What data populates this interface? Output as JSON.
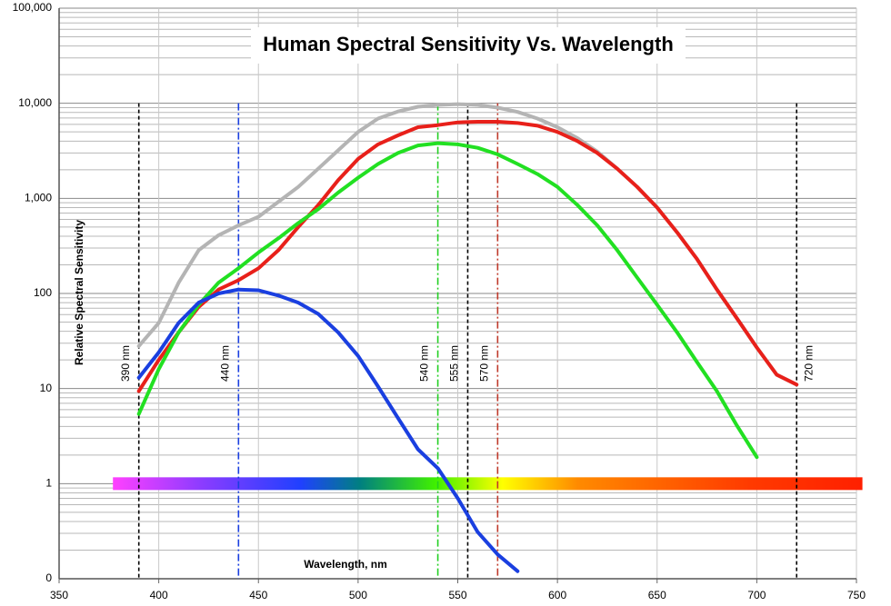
{
  "chart_data": {
    "type": "line",
    "title": "Human Spectral Sensitivity Vs. Wavelength",
    "x_label": "Wavelength, nm",
    "y_label": "Relative Spectral Sensitivity",
    "log_y": true,
    "grid": true,
    "xlim": [
      350,
      750
    ],
    "xticks": [
      350,
      400,
      450,
      500,
      550,
      600,
      650,
      700,
      750
    ],
    "ylim": [
      0.1,
      100000
    ],
    "yticks": [
      {
        "value": 0.1,
        "label": "0"
      },
      1,
      10,
      100,
      {
        "value": 1000,
        "label": "1,000"
      },
      {
        "value": 10000,
        "label": "10,000"
      },
      {
        "value": 100000,
        "label": "100,000"
      }
    ],
    "x": [
      390,
      400,
      410,
      420,
      430,
      440,
      450,
      460,
      470,
      480,
      490,
      500,
      510,
      520,
      530,
      540,
      550,
      560,
      570,
      580,
      590,
      600,
      610,
      620,
      630,
      640,
      650,
      660,
      670,
      680,
      690,
      700,
      710,
      720
    ],
    "series": [
      {
        "color": "#1a3fe0",
        "values": [
          13,
          24,
          49,
          80,
          100,
          110,
          108,
          95,
          80,
          61,
          39,
          22,
          10.5,
          4.9,
          2.3,
          1.45,
          0.7,
          0.31,
          0.18,
          0.12,
          null,
          null,
          null,
          null,
          null,
          null,
          null,
          null,
          null,
          null,
          null,
          null,
          null,
          null
        ]
      },
      {
        "color": "#e8201a",
        "values": [
          9.4,
          20,
          39,
          72,
          110,
          138,
          184,
          285,
          500,
          850,
          1550,
          2600,
          3700,
          4600,
          5600,
          5900,
          6300,
          6400,
          6400,
          6200,
          5800,
          5000,
          4000,
          3000,
          2050,
          1320,
          800,
          440,
          230,
          110,
          55,
          27,
          14,
          11
        ]
      },
      {
        "color": "#22e022",
        "values": [
          5.4,
          16,
          39,
          76,
          130,
          184,
          270,
          380,
          550,
          770,
          1150,
          1650,
          2300,
          3000,
          3600,
          3800,
          3700,
          3400,
          2900,
          2300,
          1800,
          1320,
          850,
          520,
          285,
          147,
          76,
          39,
          19,
          9.4,
          4.1,
          1.9,
          null,
          null
        ]
      },
      {
        "color": "#b4b4b4",
        "values": [
          28,
          49,
          130,
          285,
          410,
          520,
          640,
          920,
          1320,
          2050,
          3200,
          5000,
          6900,
          8200,
          9200,
          9600,
          9800,
          9600,
          9000,
          8100,
          6900,
          5600,
          4300,
          3100,
          2050,
          1320,
          800,
          440,
          230,
          110,
          55,
          27,
          14,
          11
        ]
      }
    ],
    "markers": [
      {
        "x": 390,
        "label": "390  nm",
        "color": "#000000"
      },
      {
        "x": 440,
        "label": "440 nm",
        "color": "#1a3fe0"
      },
      {
        "x": 540,
        "label": "540 nm",
        "color": "#22d022"
      },
      {
        "x": 555,
        "label": "555 nm",
        "color": "#000000"
      },
      {
        "x": 570,
        "label": "570 nm",
        "color": "#c0392b"
      },
      {
        "x": 720,
        "label": "720 nm",
        "color": "#000000"
      }
    ],
    "spectrum": {
      "xrange": [
        377,
        753
      ],
      "y": 1
    }
  }
}
